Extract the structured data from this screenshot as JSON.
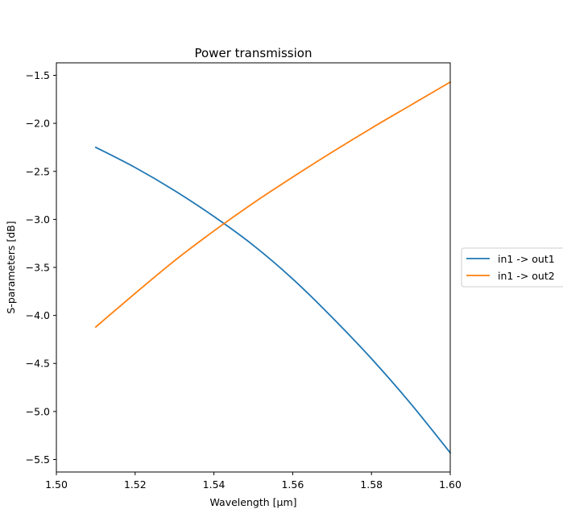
{
  "chart_data": {
    "type": "line",
    "title": "Power transmission",
    "xlabel": "Wavelength [μm]",
    "ylabel": "S-parameters [dB]",
    "xlim": [
      1.5,
      1.6
    ],
    "ylim": [
      -5.63,
      -1.37
    ],
    "x_ticks": [
      "1.50",
      "1.52",
      "1.54",
      "1.56",
      "1.58",
      "1.60"
    ],
    "y_ticks": [
      "−1.5",
      "−2.0",
      "−2.5",
      "−3.0",
      "−3.5",
      "−4.0",
      "−4.5",
      "−5.0",
      "−5.5"
    ],
    "grid": false,
    "legend_position": "outside-right",
    "series": [
      {
        "name": "in1 -> out1",
        "color": "#1f77b4",
        "x": [
          1.51,
          1.52,
          1.53,
          1.54,
          1.55,
          1.56,
          1.57,
          1.58,
          1.59,
          1.6
        ],
        "y": [
          -2.25,
          -2.46,
          -2.7,
          -2.97,
          -3.27,
          -3.62,
          -4.02,
          -4.45,
          -4.92,
          -5.43
        ]
      },
      {
        "name": "in1 -> out2",
        "color": "#ff7f0e",
        "x": [
          1.51,
          1.52,
          1.53,
          1.54,
          1.55,
          1.56,
          1.57,
          1.58,
          1.59,
          1.6
        ],
        "y": [
          -4.12,
          -3.77,
          -3.43,
          -3.12,
          -2.83,
          -2.56,
          -2.3,
          -2.05,
          -1.81,
          -1.57
        ]
      }
    ]
  }
}
